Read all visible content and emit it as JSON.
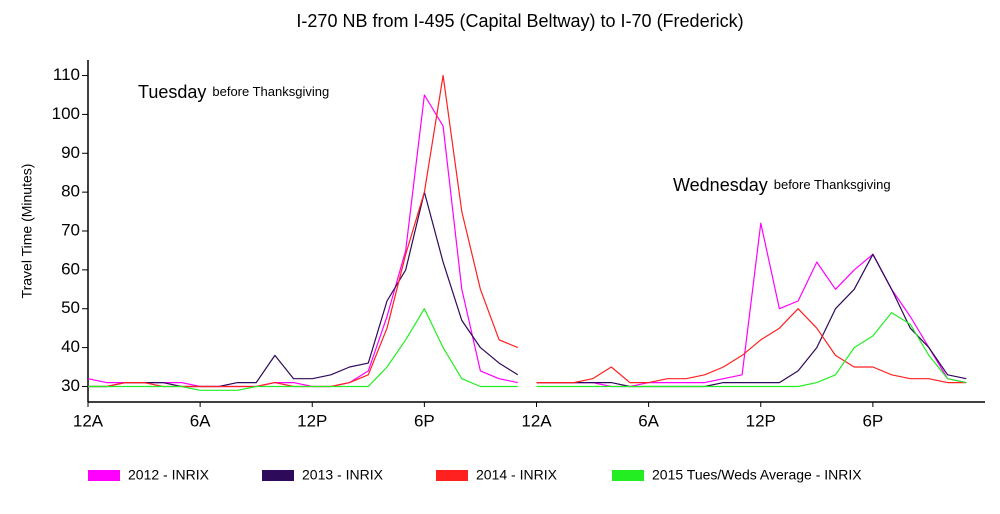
{
  "chart_data": {
    "type": "line",
    "title": "I-270 NB from I-495 (Capital Beltway) to I-70 (Frederick)",
    "y_label": "Travel Time (Minutes)",
    "annotations": [
      {
        "label": "Tuesday",
        "note": "before Thanksgiving"
      },
      {
        "label": "Wednesday",
        "note": "before Thanksgiving"
      }
    ],
    "x": [
      0,
      1,
      2,
      3,
      4,
      5,
      6,
      7,
      8,
      9,
      10,
      11,
      12,
      13,
      14,
      15,
      16,
      17,
      18,
      19,
      20,
      21,
      22,
      23,
      23.5,
      24,
      25,
      26,
      27,
      28,
      29,
      30,
      31,
      32,
      33,
      34,
      35,
      36,
      37,
      38,
      39,
      40,
      41,
      42,
      43,
      44,
      45,
      46,
      47
    ],
    "xlim": [
      0,
      48
    ],
    "xticks": [
      {
        "value": 0,
        "label": "12A"
      },
      {
        "value": 6,
        "label": "6A"
      },
      {
        "value": 12,
        "label": "12P"
      },
      {
        "value": 18,
        "label": "6P"
      },
      {
        "value": 24,
        "label": "12A"
      },
      {
        "value": 30,
        "label": "6A"
      },
      {
        "value": 36,
        "label": "12P"
      },
      {
        "value": 42,
        "label": "6P"
      }
    ],
    "ylim": [
      26,
      114
    ],
    "yticks": [
      30,
      40,
      50,
      60,
      70,
      80,
      90,
      100,
      110
    ],
    "series": [
      {
        "name": "2012 - INRIX",
        "color": "#ff00ff",
        "values": [
          32,
          31,
          31,
          31,
          31,
          31,
          30,
          30,
          30,
          30,
          31,
          31,
          30,
          30,
          31,
          34,
          48,
          65,
          105,
          97,
          55,
          34,
          32,
          31,
          null,
          31,
          31,
          31,
          31,
          30,
          30,
          31,
          31,
          31,
          31,
          32,
          33,
          72,
          50,
          52,
          62,
          55,
          60,
          64,
          55,
          48,
          40,
          32,
          31
        ]
      },
      {
        "name": "2013 - INRIX",
        "color": "#2e0a5a",
        "values": [
          30,
          30,
          31,
          31,
          31,
          30,
          30,
          30,
          31,
          31,
          38,
          32,
          32,
          33,
          35,
          36,
          52,
          60,
          80,
          62,
          47,
          40,
          36,
          33,
          null,
          31,
          31,
          31,
          31,
          31,
          30,
          30,
          30,
          30,
          30,
          31,
          31,
          31,
          31,
          34,
          40,
          50,
          55,
          64,
          55,
          45,
          40,
          33,
          32
        ]
      },
      {
        "name": "2014 - INRIX",
        "color": "#ff2020",
        "values": [
          30,
          30,
          31,
          31,
          30,
          30,
          30,
          30,
          30,
          30,
          31,
          30,
          30,
          30,
          31,
          33,
          45,
          64,
          80,
          110,
          75,
          55,
          42,
          40,
          null,
          31,
          31,
          31,
          32,
          35,
          31,
          31,
          32,
          32,
          33,
          35,
          38,
          42,
          45,
          50,
          45,
          38,
          35,
          35,
          33,
          32,
          32,
          31,
          31
        ]
      },
      {
        "name": "2015 Tues/Weds Average - INRIX",
        "color": "#22ee22",
        "values": [
          30,
          30,
          30,
          30,
          30,
          30,
          29,
          29,
          29,
          30,
          30,
          30,
          30,
          30,
          30,
          30,
          35,
          42,
          50,
          40,
          32,
          30,
          30,
          30,
          null,
          30,
          30,
          30,
          30,
          30,
          30,
          30,
          30,
          30,
          30,
          30,
          30,
          30,
          30,
          30,
          31,
          33,
          40,
          43,
          49,
          46,
          38,
          32,
          31
        ]
      }
    ]
  }
}
